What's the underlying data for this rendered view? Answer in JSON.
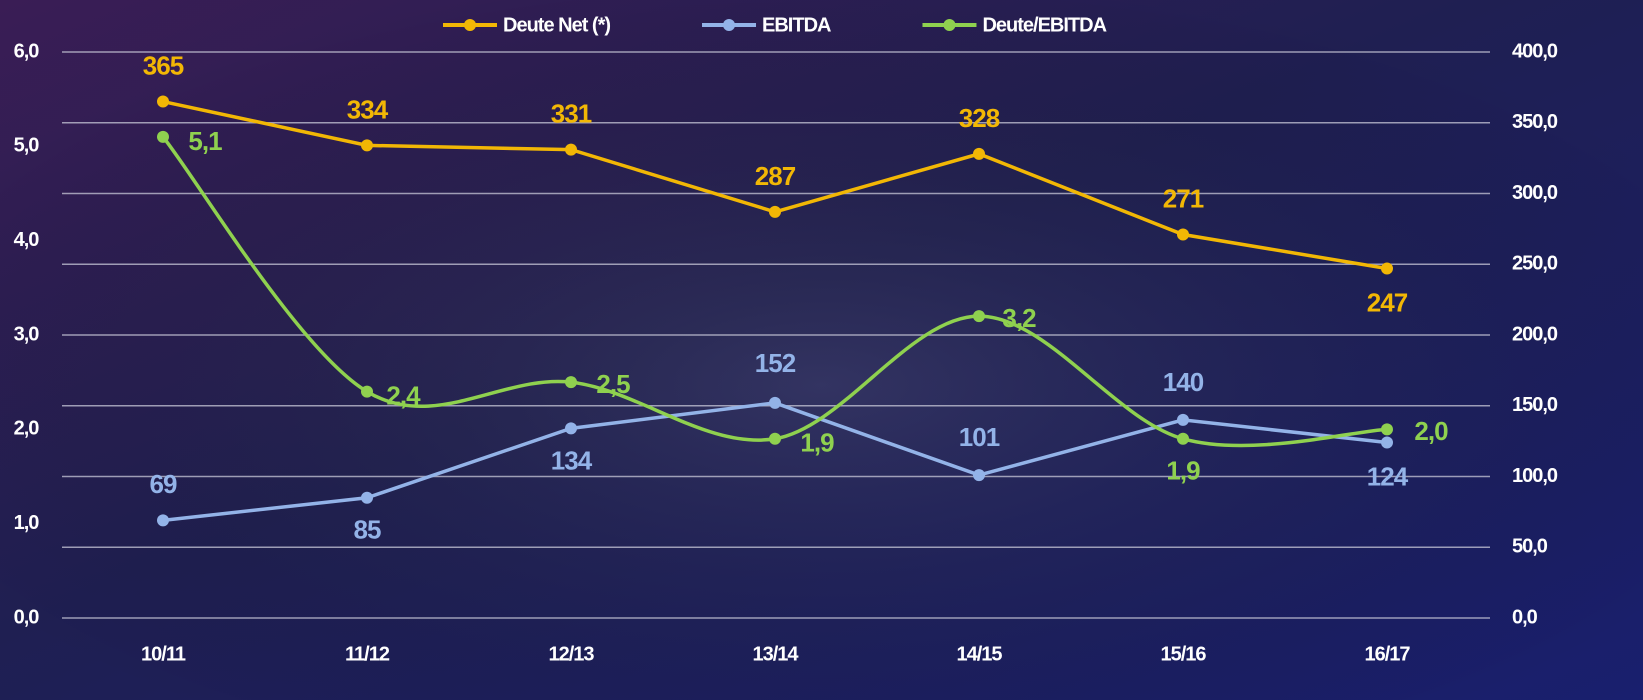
{
  "chart_data": {
    "type": "line",
    "categories": [
      "10/11",
      "11/12",
      "12/13",
      "13/14",
      "14/15",
      "15/16",
      "16/17"
    ],
    "series": [
      {
        "name": "Deute Net (*)",
        "color": "#f2b705",
        "axis": "y2",
        "smooth": false,
        "values": [
          365,
          334,
          331,
          287,
          328,
          271,
          247
        ]
      },
      {
        "name": "EBITDA",
        "color": "#93b3e8",
        "axis": "y2",
        "smooth": false,
        "values": [
          69,
          85,
          134,
          152,
          101,
          140,
          124
        ]
      },
      {
        "name": "Deute/EBITDA",
        "color": "#8fd14f",
        "axis": "y",
        "smooth": true,
        "values": [
          5.1,
          2.4,
          2.5,
          1.9,
          3.2,
          1.9,
          2.0
        ],
        "value_labels": [
          "5,1",
          "2,4",
          "2,5",
          "1,9",
          "3,2",
          "1,9",
          "2,0"
        ]
      }
    ],
    "ylim": [
      0,
      6
    ],
    "yticks": [
      {
        "value": 0,
        "label": "0,0"
      },
      {
        "value": 1,
        "label": "1,0"
      },
      {
        "value": 2,
        "label": "2,0"
      },
      {
        "value": 3,
        "label": "3,0"
      },
      {
        "value": 4,
        "label": "4,0"
      },
      {
        "value": 5,
        "label": "5,0"
      },
      {
        "value": 6,
        "label": "6,0"
      }
    ],
    "y2lim": [
      0,
      400
    ],
    "y2ticks": [
      {
        "value": 0,
        "label": "0,0"
      },
      {
        "value": 50,
        "label": "50,0"
      },
      {
        "value": 100,
        "label": "100,0"
      },
      {
        "value": 150,
        "label": "150,0"
      },
      {
        "value": 200,
        "label": "200,0"
      },
      {
        "value": 250,
        "label": "250,0"
      },
      {
        "value": 300,
        "label": "300,0"
      },
      {
        "value": 350,
        "label": "350,0"
      },
      {
        "value": 400,
        "label": "400,0"
      }
    ],
    "grid": true,
    "legend": "top"
  }
}
